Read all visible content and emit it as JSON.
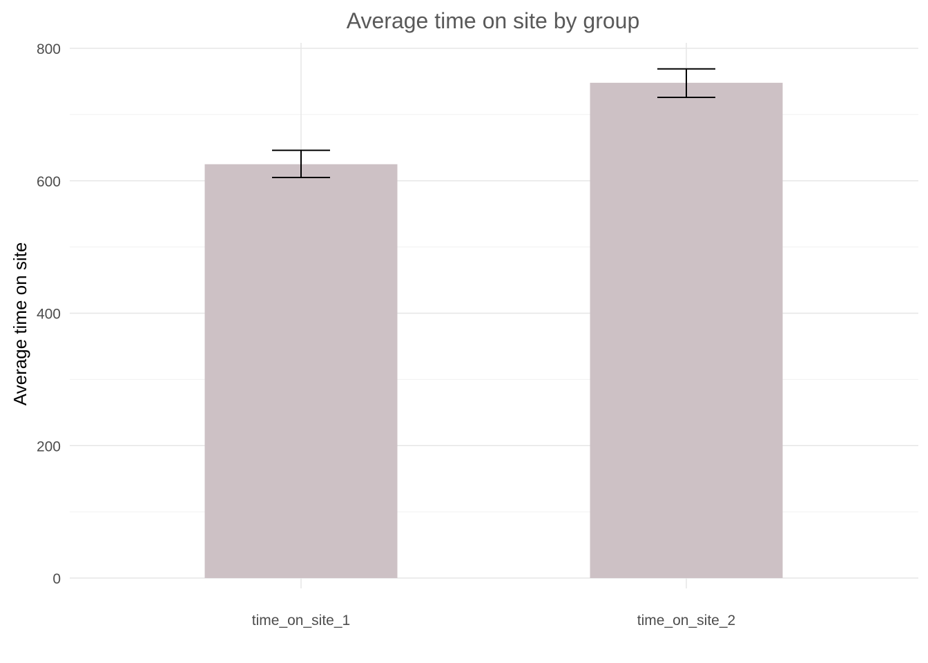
{
  "chart_data": {
    "type": "bar",
    "title": "Average time on site by group",
    "xlabel": "",
    "ylabel": "Average time on site",
    "categories": [
      "time_on_site_1",
      "time_on_site_2"
    ],
    "values": [
      625,
      748
    ],
    "error_bars": [
      {
        "low": 605,
        "high": 646
      },
      {
        "low": 726,
        "high": 769
      }
    ],
    "ylim": [
      0,
      800
    ],
    "y_ticks": [
      "0",
      "200",
      "400",
      "600",
      "800"
    ],
    "grid": true,
    "bar_color": "#cdc1c5",
    "error_bar_color": "#000000"
  }
}
